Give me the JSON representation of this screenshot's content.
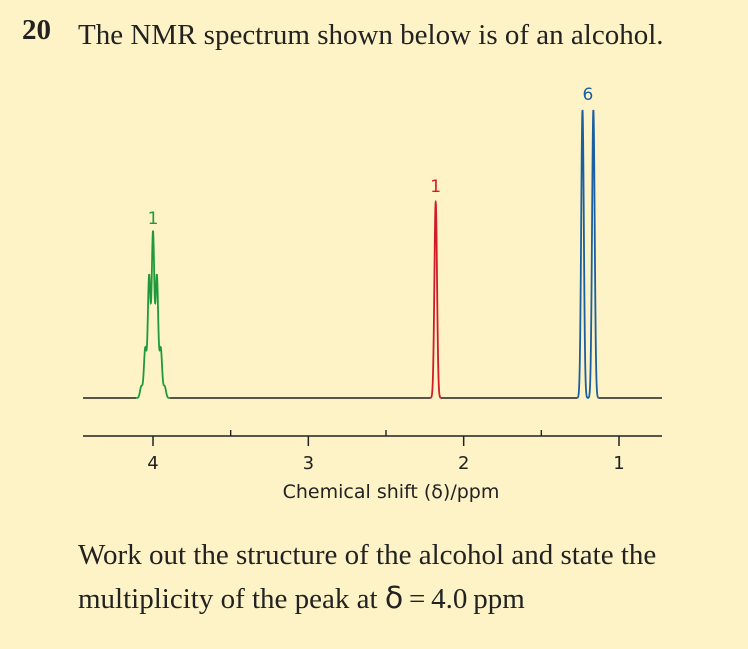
{
  "question": {
    "number": "20",
    "text": "The NMR spectrum shown below is of an alcohol.",
    "followup_part1": "Work out the structure of the alcohol and state the multiplicity of the peak at ",
    "followup_symbol": "δ",
    "followup_part2": " = 4.0 ppm"
  },
  "colors": {
    "green": "#1f9a3a",
    "red": "#d11a2a",
    "blue": "#1a5fa0",
    "axis": "#222222"
  },
  "chart_data": {
    "type": "line",
    "title": "",
    "xlabel": "Chemical shift (δ)/ppm",
    "ylabel": "",
    "xlim": [
      4.55,
      0.85
    ],
    "x_reversed": true,
    "major_ticks": [
      4,
      3,
      2,
      1
    ],
    "minor_ticks": [
      3.5,
      2.5,
      1.5
    ],
    "tick_labels": [
      "4",
      "3",
      "2",
      "1"
    ],
    "peaks": [
      {
        "shift": 4.0,
        "multiplicity": "septet",
        "integration_label": "1",
        "color": "green",
        "lines": [
          {
            "offset": -0.075,
            "height": 0.04
          },
          {
            "offset": -0.05,
            "height": 0.17
          },
          {
            "offset": -0.025,
            "height": 0.42
          },
          {
            "offset": 0.0,
            "height": 0.57
          },
          {
            "offset": 0.025,
            "height": 0.42
          },
          {
            "offset": 0.05,
            "height": 0.17
          },
          {
            "offset": 0.075,
            "height": 0.04
          }
        ]
      },
      {
        "shift": 2.18,
        "multiplicity": "singlet",
        "integration_label": "1",
        "color": "red",
        "lines": [
          {
            "offset": 0.0,
            "height": 0.68
          }
        ]
      },
      {
        "shift": 1.2,
        "multiplicity": "doublet",
        "integration_label": "6",
        "color": "blue",
        "lines": [
          {
            "offset": -0.035,
            "height": 1.0
          },
          {
            "offset": 0.035,
            "height": 1.0
          }
        ]
      }
    ]
  }
}
